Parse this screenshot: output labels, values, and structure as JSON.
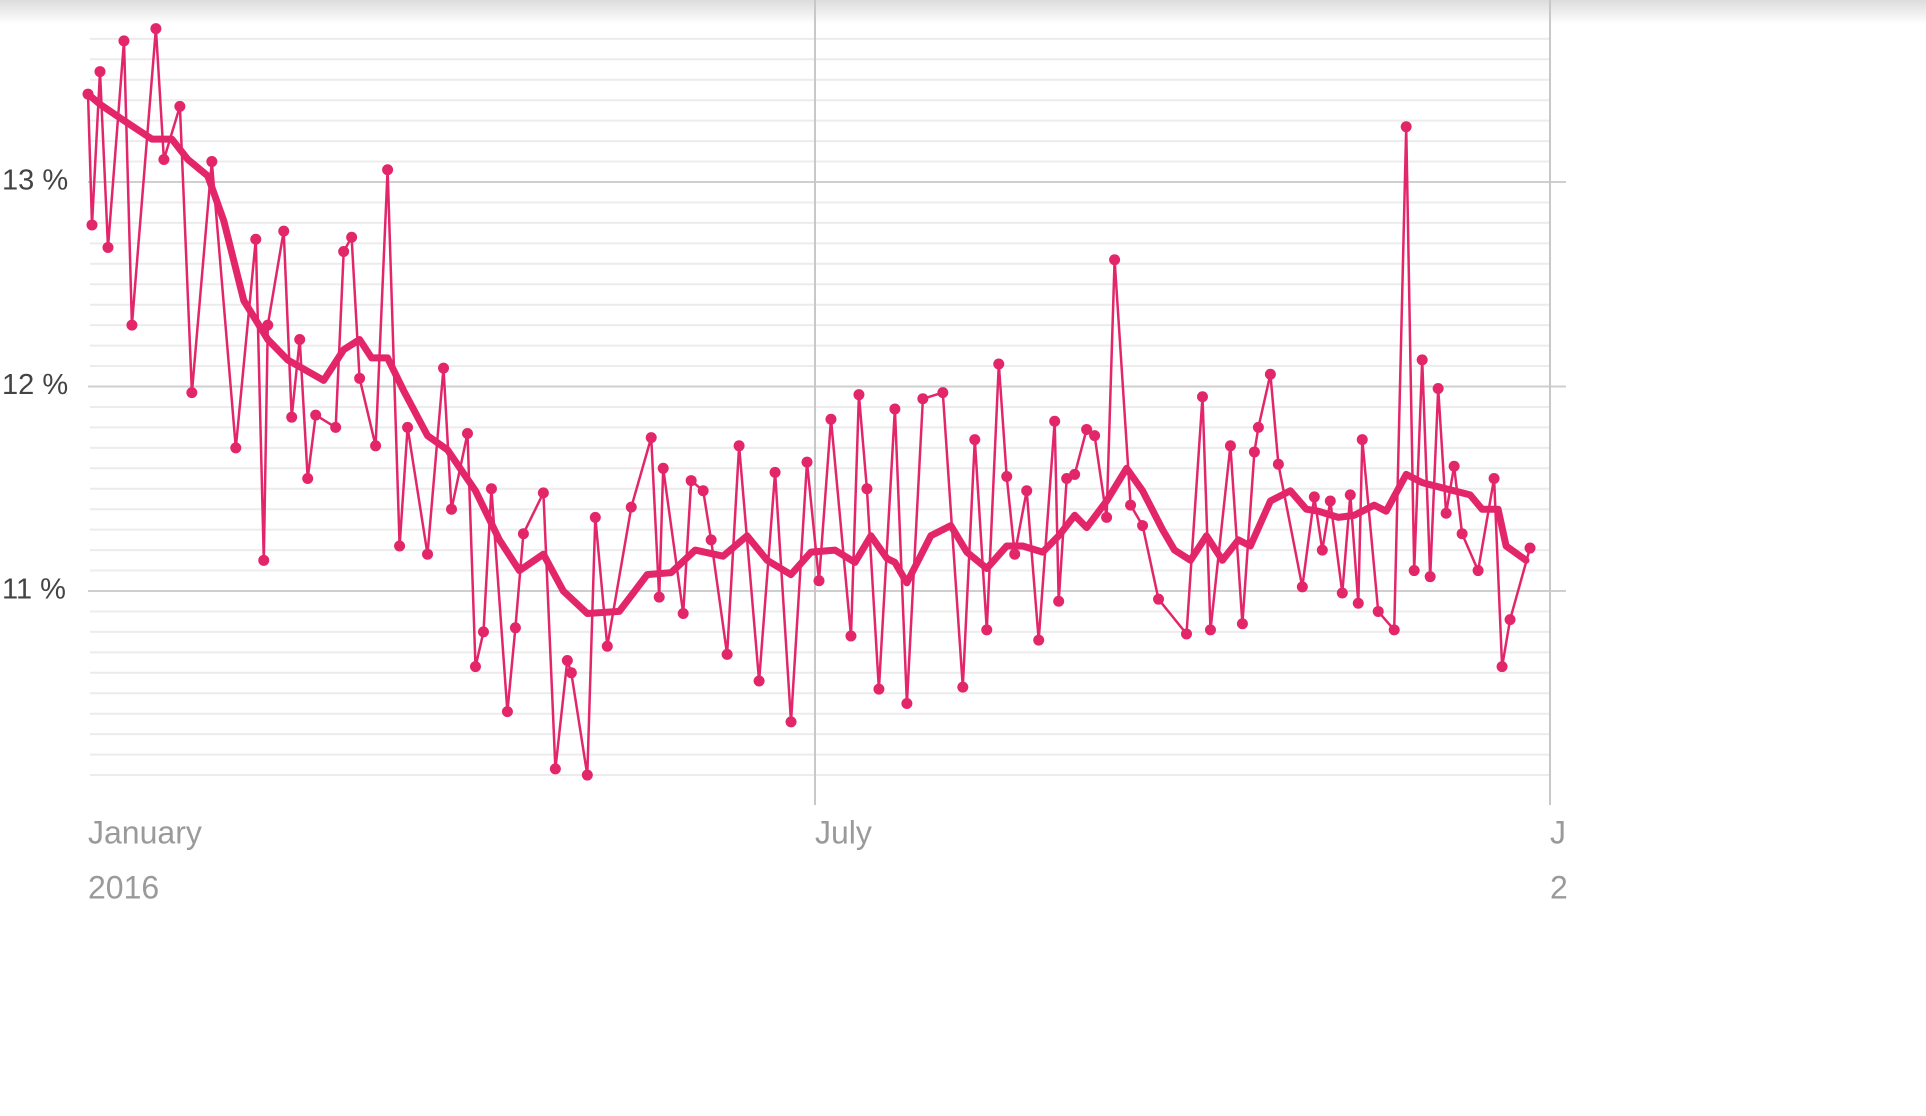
{
  "chart_data": {
    "type": "line",
    "xlim": [
      0,
      366
    ],
    "xticks": [
      {
        "value": 0,
        "label": "January"
      },
      {
        "value": 182,
        "label": "July"
      },
      {
        "value": 366,
        "label": "J"
      }
    ],
    "year_labels": [
      "2016",
      null,
      "2"
    ],
    "ylim": [
      10,
      13.8
    ],
    "yticks": [
      {
        "value": 11,
        "label": "11 %"
      },
      {
        "value": 12,
        "label": "12 %"
      },
      {
        "value": 13,
        "label": "13 %"
      }
    ],
    "minor_yticks": [
      10.1,
      10.2,
      10.3,
      10.4,
      10.5,
      10.6,
      10.7,
      10.8,
      10.9,
      11.1,
      11.2,
      11.3,
      11.4,
      11.5,
      11.6,
      11.7,
      11.8,
      11.9,
      12.1,
      12.2,
      12.3,
      12.4,
      12.5,
      12.6,
      12.7,
      12.8,
      12.9,
      13.1,
      13.2,
      13.3,
      13.4,
      13.5,
      13.6,
      13.7
    ],
    "grid": true,
    "series": [
      {
        "color": "#e3266a",
        "markers": true,
        "x": [
          0,
          1,
          3,
          5,
          9,
          11,
          17,
          19,
          23,
          26,
          31,
          37,
          42,
          44,
          45,
          49,
          51,
          53,
          55,
          57,
          62,
          64,
          66,
          68,
          72,
          75,
          78,
          80,
          85,
          89,
          91,
          95,
          97,
          99,
          101,
          105,
          107,
          109,
          114,
          117,
          120,
          121,
          125,
          127,
          130,
          136,
          141,
          143,
          144,
          149,
          151,
          154,
          156,
          160,
          163,
          168,
          172,
          176,
          180,
          183,
          186,
          191,
          193,
          195,
          198,
          202,
          205,
          209,
          214,
          219,
          222,
          225,
          228,
          230,
          232,
          235,
          238,
          242,
          243,
          245,
          247,
          250,
          252,
          255,
          257,
          261,
          264,
          268,
          275,
          279,
          281,
          286,
          289,
          292,
          293,
          296,
          298,
          304,
          307,
          309,
          311,
          314,
          316,
          318,
          319,
          323,
          327,
          330,
          332,
          334,
          336,
          338,
          340,
          342,
          344,
          348,
          352,
          354,
          356,
          361
        ],
        "values": [
          13.43,
          12.79,
          13.54,
          12.68,
          13.69,
          12.3,
          13.75,
          13.11,
          13.37,
          11.97,
          13.1,
          11.7,
          12.72,
          11.15,
          12.3,
          12.76,
          11.85,
          12.23,
          11.55,
          11.86,
          11.8,
          12.66,
          12.73,
          12.04,
          11.71,
          13.06,
          11.22,
          11.8,
          11.18,
          12.09,
          11.4,
          11.77,
          10.63,
          10.8,
          11.5,
          10.41,
          10.82,
          11.28,
          11.48,
          10.13,
          10.66,
          10.6,
          10.1,
          11.36,
          10.73,
          11.41,
          11.75,
          10.97,
          11.6,
          10.89,
          11.54,
          11.49,
          11.25,
          10.69,
          11.71,
          10.56,
          11.58,
          10.36,
          11.63,
          11.05,
          11.84,
          10.78,
          11.96,
          11.5,
          10.52,
          11.89,
          10.45,
          11.94,
          11.97,
          10.53,
          11.74,
          10.81,
          12.11,
          11.56,
          11.18,
          11.49,
          10.76,
          11.83,
          10.95,
          11.55,
          11.57,
          11.79,
          11.76,
          11.36,
          12.62,
          11.42,
          11.32,
          10.96,
          10.79,
          11.95,
          10.81,
          11.71,
          10.84,
          11.68,
          11.8,
          12.06,
          11.62,
          11.02,
          11.46,
          11.2,
          11.44,
          10.99,
          11.47,
          10.94,
          11.74,
          10.9,
          10.81,
          13.27,
          11.1,
          12.13,
          11.07,
          11.99,
          11.38,
          11.61,
          11.28,
          11.1,
          11.55,
          10.63,
          10.86,
          11.21
        ]
      },
      {
        "color": "#e3266a",
        "markers": false,
        "x": [
          0,
          3,
          9,
          16,
          21,
          25,
          30,
          34,
          39,
          45,
          50,
          59,
          64,
          68,
          71,
          75,
          79,
          85,
          90,
          97,
          103,
          108,
          114,
          119,
          125,
          133,
          140,
          146,
          152,
          159,
          165,
          170,
          176,
          181,
          187,
          192,
          196,
          200,
          202,
          205,
          211,
          216,
          220,
          225,
          230,
          234,
          239,
          243,
          247,
          250,
          255,
          260,
          264,
          269,
          272,
          276,
          280,
          284,
          288,
          291,
          296,
          301,
          305,
          308,
          313,
          317,
          322,
          325,
          330,
          334,
          340,
          346,
          349,
          353,
          355,
          360
        ],
        "values": [
          13.43,
          13.38,
          13.3,
          13.21,
          13.21,
          13.11,
          13.03,
          12.81,
          12.42,
          12.23,
          12.13,
          12.03,
          12.18,
          12.23,
          12.14,
          12.14,
          11.98,
          11.76,
          11.69,
          11.49,
          11.25,
          11.1,
          11.18,
          11.0,
          10.89,
          10.9,
          11.08,
          11.09,
          11.2,
          11.17,
          11.27,
          11.15,
          11.08,
          11.19,
          11.2,
          11.14,
          11.27,
          11.16,
          11.14,
          11.04,
          11.27,
          11.32,
          11.19,
          11.11,
          11.22,
          11.22,
          11.19,
          11.27,
          11.37,
          11.31,
          11.44,
          11.6,
          11.49,
          11.3,
          11.2,
          11.15,
          11.27,
          11.15,
          11.25,
          11.22,
          11.44,
          11.49,
          11.4,
          11.39,
          11.36,
          11.37,
          11.42,
          11.39,
          11.57,
          11.53,
          11.5,
          11.47,
          11.4,
          11.4,
          11.22,
          11.15
        ]
      }
    ]
  }
}
